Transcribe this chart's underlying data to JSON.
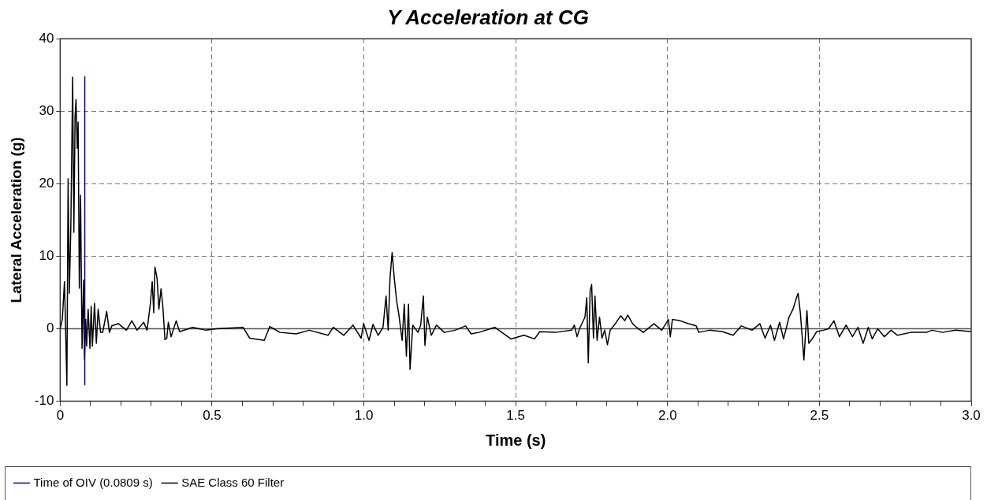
{
  "chart_data": {
    "type": "line",
    "title": "Y Acceleration at CG",
    "xlabel": "Time (s)",
    "ylabel": "Lateral Acceleration (g)",
    "xlim": [
      0,
      3
    ],
    "ylim": [
      -10,
      40
    ],
    "xticks": [
      0,
      {
        "value": 0.1,
        "label": null
      },
      {
        "value": 0.2,
        "label": null
      },
      {
        "value": 0.3,
        "label": null
      },
      {
        "value": 0.4,
        "label": null
      },
      0.5,
      {
        "value": 0.6,
        "label": null
      },
      {
        "value": 0.7,
        "label": null
      },
      {
        "value": 0.8,
        "label": null
      },
      {
        "value": 0.9,
        "label": null
      },
      {
        "value": 1,
        "label": "1.0"
      },
      {
        "value": 1.1,
        "label": null
      },
      {
        "value": 1.2,
        "label": null
      },
      {
        "value": 1.3,
        "label": null
      },
      {
        "value": 1.4,
        "label": null
      },
      1.5,
      {
        "value": 1.6,
        "label": null
      },
      {
        "value": 1.7,
        "label": null
      },
      {
        "value": 1.8,
        "label": null
      },
      {
        "value": 1.9,
        "label": null
      },
      {
        "value": 2,
        "label": "2.0"
      },
      {
        "value": 2.1,
        "label": null
      },
      {
        "value": 2.2,
        "label": null
      },
      {
        "value": 2.3,
        "label": null
      },
      {
        "value": 2.4,
        "label": null
      },
      2.5,
      {
        "value": 2.6,
        "label": null
      },
      {
        "value": 2.7,
        "label": null
      },
      {
        "value": 2.8,
        "label": null
      },
      {
        "value": 2.9,
        "label": null
      },
      {
        "value": 3,
        "label": "3.0"
      }
    ],
    "yticks": [
      -10,
      0,
      10,
      20,
      30,
      40
    ],
    "grid": true,
    "legend": "bottom left",
    "marker": "none",
    "line_style": "solid",
    "ref_lines": [
      {
        "axis": "y",
        "value": 0,
        "color": "#555555"
      }
    ],
    "series": [
      {
        "name": "Time of OIV (0.0809 s)",
        "color": "#0000a0",
        "x": [
          0.0809,
          0.0809
        ],
        "values": [
          -7.8,
          34.8
        ]
      },
      {
        "name": "SAE Class 60 Filter",
        "color": "#000000",
        "x": [
          0,
          0.007,
          0.014,
          0.017,
          0.022,
          0.026,
          0.03,
          0.035,
          0.041,
          0.045,
          0.049,
          0.052,
          0.056,
          0.059,
          0.063,
          0.067,
          0.072,
          0.077,
          0.08,
          0.084,
          0.087,
          0.092,
          0.098,
          0.102,
          0.106,
          0.113,
          0.119,
          0.125,
          0.133,
          0.14,
          0.153,
          0.162,
          0.17,
          0.192,
          0.218,
          0.236,
          0.253,
          0.275,
          0.286,
          0.297,
          0.303,
          0.308,
          0.312,
          0.319,
          0.325,
          0.332,
          0.338,
          0.345,
          0.351,
          0.356,
          0.365,
          0.382,
          0.393,
          0.436,
          0.48,
          0.515,
          0.602,
          0.624,
          0.672,
          0.69,
          0.724,
          0.777,
          0.82,
          0.882,
          0.899,
          0.934,
          0.964,
          0.991,
          0.999,
          1.017,
          1.03,
          1.047,
          1.063,
          1.073,
          1.08,
          1.086,
          1.093,
          1.1,
          1.108,
          1.115,
          1.126,
          1.133,
          1.14,
          1.147,
          1.152,
          1.161,
          1.178,
          1.187,
          1.196,
          1.201,
          1.209,
          1.222,
          1.239,
          1.265,
          1.3,
          1.335,
          1.353,
          1.379,
          1.431,
          1.484,
          1.527,
          1.562,
          1.579,
          1.632,
          1.684,
          1.693,
          1.702,
          1.71,
          1.728,
          1.734,
          1.739,
          1.745,
          1.75,
          1.756,
          1.761,
          1.768,
          1.776,
          1.784,
          1.793,
          1.802,
          1.811,
          1.828,
          1.846,
          1.859,
          1.869,
          1.885,
          1.898,
          1.92,
          1.955,
          1.981,
          2.003,
          2.009,
          2.016,
          2.042,
          2.068,
          2.094,
          2.103,
          2.138,
          2.181,
          2.216,
          2.243,
          2.278,
          2.304,
          2.321,
          2.339,
          2.352,
          2.369,
          2.382,
          2.4,
          2.413,
          2.424,
          2.43,
          2.437,
          2.443,
          2.449,
          2.459,
          2.465,
          2.478,
          2.491,
          2.513,
          2.53,
          2.548,
          2.566,
          2.588,
          2.609,
          2.627,
          2.644,
          2.661,
          2.674,
          2.692,
          2.714,
          2.736,
          2.757,
          2.801,
          2.853,
          2.871,
          2.905,
          2.949,
          3.0
        ],
        "values": [
          0,
          1.3,
          6.5,
          1.3,
          -7.8,
          20.7,
          4.9,
          14,
          34.7,
          13.3,
          29.3,
          31.6,
          24.9,
          28.5,
          5.6,
          18.4,
          -2.7,
          6.7,
          -4.2,
          1.3,
          -2.4,
          2.7,
          -2.7,
          3.1,
          -2.4,
          3.5,
          -2,
          2.7,
          -0.5,
          -0.5,
          2.4,
          -0.5,
          0.4,
          0.7,
          -0.2,
          1.1,
          -0.2,
          0.9,
          -0.2,
          3.5,
          6.5,
          2.2,
          8.5,
          6.9,
          2.7,
          5.5,
          3.1,
          -1.5,
          -1.3,
          0.9,
          -1.1,
          1.1,
          -0.4,
          0.2,
          -0.2,
          0,
          0.2,
          -1.3,
          -1.6,
          0.3,
          -0.5,
          -0.7,
          -0.2,
          -0.9,
          0.2,
          -0.9,
          0.5,
          -1.3,
          0.7,
          -1.6,
          0.6,
          -0.9,
          0.2,
          4.5,
          -0.2,
          7,
          10.5,
          7,
          3.8,
          2,
          -1.6,
          3.4,
          -3.8,
          3.4,
          -5.6,
          0.5,
          -0.5,
          0.5,
          4.5,
          -2.3,
          1.6,
          -0.9,
          0.5,
          -0.5,
          -0.2,
          0.4,
          -0.7,
          -0.5,
          0.2,
          -1.4,
          -0.9,
          -1.4,
          -0.4,
          -0.5,
          -0.2,
          0.5,
          -1.1,
          0,
          1.6,
          4.3,
          -4.7,
          5.2,
          6.1,
          -1.3,
          4.5,
          -1.6,
          1.6,
          -1.3,
          -0.2,
          -2.2,
          -0.2,
          0.7,
          1.8,
          1.1,
          1.9,
          0.7,
          0.2,
          -0.5,
          0.7,
          -0.2,
          1.3,
          -1.1,
          1.3,
          1.1,
          0.7,
          0.4,
          -0.5,
          -0.2,
          -0.4,
          -0.9,
          0.4,
          -0.2,
          0.7,
          -1.3,
          0.5,
          -1.6,
          0.9,
          -1.4,
          1.6,
          2.7,
          4.2,
          4.9,
          2.3,
          -0.9,
          -4.3,
          2.5,
          -2,
          -1.3,
          -0.4,
          -0.2,
          0,
          1.1,
          -1.1,
          0.5,
          -1.1,
          0.2,
          -2,
          0.2,
          -1.4,
          0,
          -1.1,
          -0.2,
          -0.9,
          -0.5,
          -0.5,
          -0.2,
          -0.5,
          -0.2,
          -0.4
        ]
      }
    ]
  }
}
